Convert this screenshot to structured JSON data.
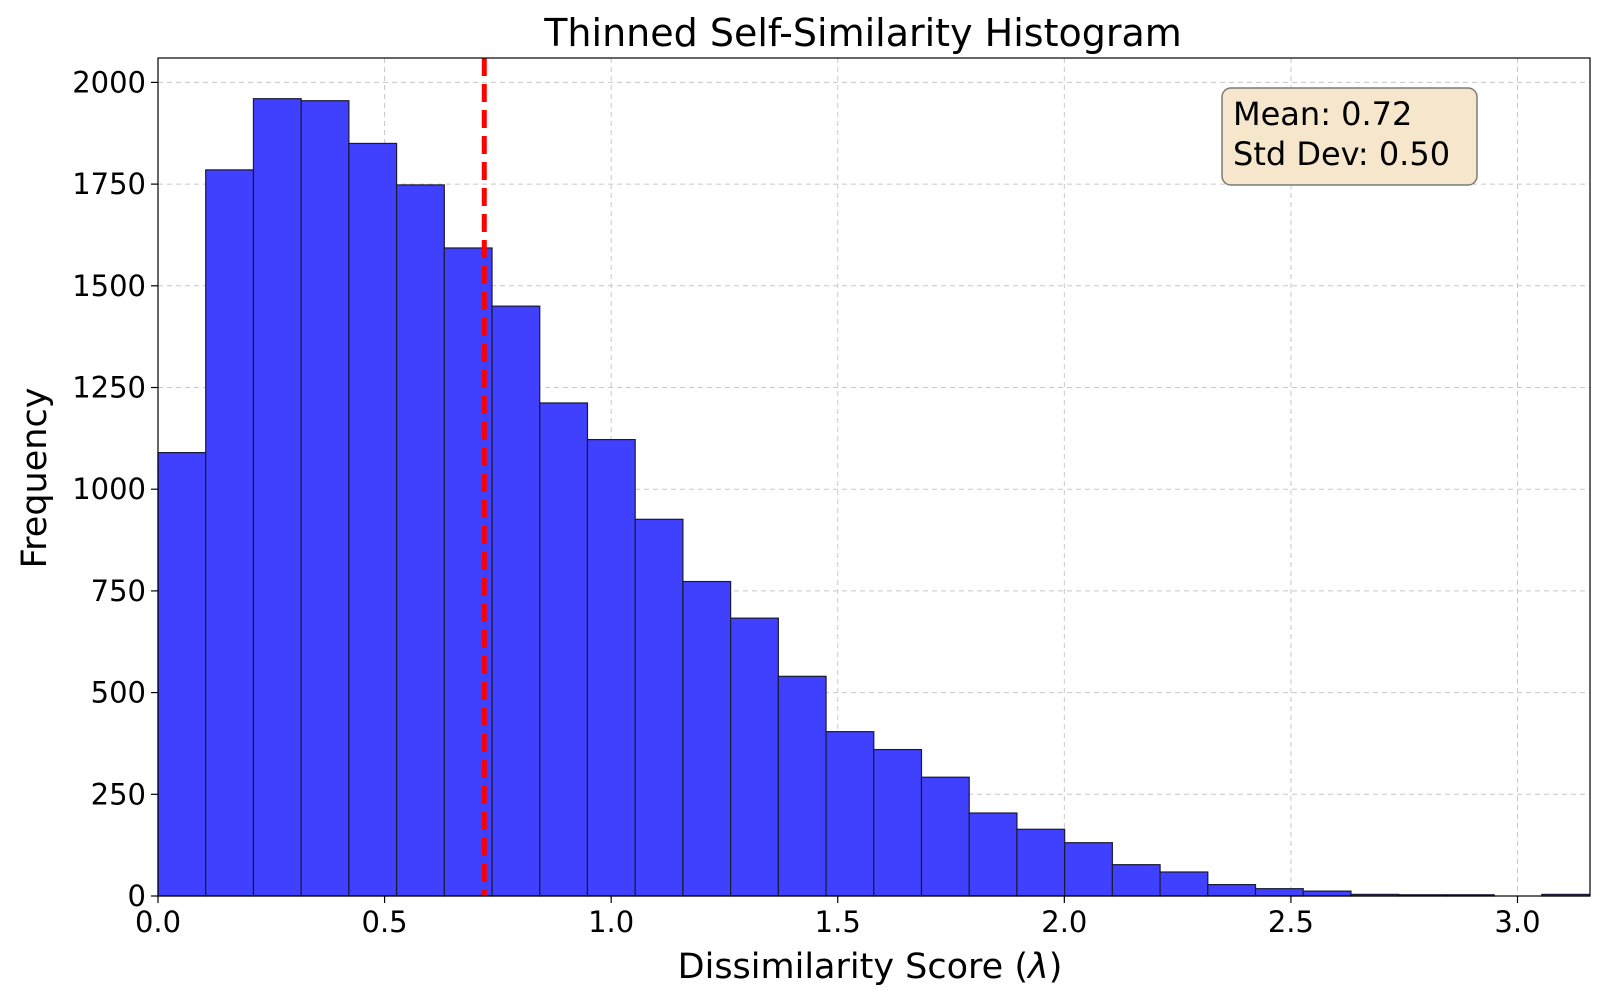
{
  "chart_data": {
    "type": "bar",
    "title": "Thinned Self-Similarity Histogram",
    "xlabel": "Dissimilarity Score (",
    "xlabel_symbol": "λ",
    "xlabel_suffix": ")",
    "ylabel": "Frequency",
    "xlim": [
      0.0,
      3.16
    ],
    "ylim": [
      0,
      2060
    ],
    "xticks": [
      0.0,
      0.5,
      1.0,
      1.5,
      2.0,
      2.5,
      3.0
    ],
    "xtick_labels": [
      "0.0",
      "0.5",
      "1.0",
      "1.5",
      "2.0",
      "2.5",
      "3.0"
    ],
    "yticks": [
      0,
      250,
      500,
      750,
      1000,
      1250,
      1500,
      1750,
      2000
    ],
    "ytick_labels": [
      "0",
      "250",
      "500",
      "750",
      "1000",
      "1250",
      "1500",
      "1750",
      "2000"
    ],
    "grid": true,
    "bin_start": 0.0,
    "bin_width": 0.1053,
    "values": [
      1090,
      1785,
      1960,
      1955,
      1850,
      1748,
      1593,
      1450,
      1212,
      1122,
      926,
      773,
      683,
      540,
      404,
      360,
      292,
      204,
      164,
      131,
      77,
      59,
      28,
      18,
      12,
      4,
      3,
      3,
      0,
      4
    ],
    "bar_color": "#4040ff",
    "edge_color": "#1a1a33",
    "mean_line": {
      "x": 0.72,
      "color": "#ff0000",
      "style": "dashed"
    },
    "stats_box": {
      "mean_text": "Mean: 0.72",
      "std_text": "Std Dev: 0.50",
      "background": "#f5e6cc",
      "location": "top-right"
    }
  }
}
